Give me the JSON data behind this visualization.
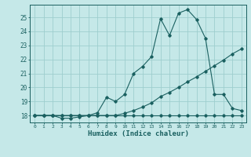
{
  "xlabel": "Humidex (Indice chaleur)",
  "ylabel": "",
  "bg_color": "#c5e8e8",
  "grid_color": "#9ecece",
  "line_color": "#1a6060",
  "xlim": [
    -0.5,
    23.5
  ],
  "ylim": [
    17.5,
    25.9
  ],
  "yticks": [
    18,
    19,
    20,
    21,
    22,
    23,
    24,
    25
  ],
  "xticks": [
    0,
    1,
    2,
    3,
    4,
    5,
    6,
    7,
    8,
    9,
    10,
    11,
    12,
    13,
    14,
    15,
    16,
    17,
    18,
    19,
    20,
    21,
    22,
    23
  ],
  "line1_x": [
    0,
    1,
    2,
    3,
    4,
    5,
    6,
    7,
    8,
    9,
    10,
    11,
    12,
    13,
    14,
    15,
    16,
    17,
    18,
    19,
    20,
    21,
    22,
    23
  ],
  "line1_y": [
    18.0,
    18.0,
    18.0,
    17.8,
    17.8,
    17.9,
    18.0,
    18.2,
    19.3,
    19.0,
    19.5,
    21.0,
    21.5,
    22.2,
    24.9,
    23.7,
    25.3,
    25.55,
    24.85,
    23.5,
    19.5,
    19.5,
    18.5,
    18.35
  ],
  "line2_x": [
    0,
    1,
    2,
    3,
    4,
    5,
    6,
    7,
    8,
    9,
    10,
    11,
    12,
    13,
    14,
    15,
    16,
    17,
    18,
    19,
    20,
    21,
    22,
    23
  ],
  "line2_y": [
    18.0,
    18.0,
    18.0,
    18.0,
    18.0,
    18.0,
    18.0,
    18.0,
    18.0,
    18.0,
    18.15,
    18.35,
    18.6,
    18.9,
    19.35,
    19.65,
    20.0,
    20.4,
    20.75,
    21.15,
    21.55,
    21.95,
    22.4,
    22.75
  ],
  "line3_x": [
    0,
    1,
    2,
    3,
    4,
    5,
    6,
    7,
    8,
    9,
    10,
    11,
    12,
    13,
    14,
    15,
    16,
    17,
    18,
    19,
    20,
    21,
    22,
    23
  ],
  "line3_y": [
    18.0,
    18.0,
    18.0,
    18.0,
    18.0,
    18.0,
    18.0,
    18.0,
    18.0,
    18.0,
    18.0,
    18.0,
    18.0,
    18.0,
    18.0,
    18.0,
    18.0,
    18.0,
    18.0,
    18.0,
    18.0,
    18.0,
    18.0,
    18.0
  ]
}
